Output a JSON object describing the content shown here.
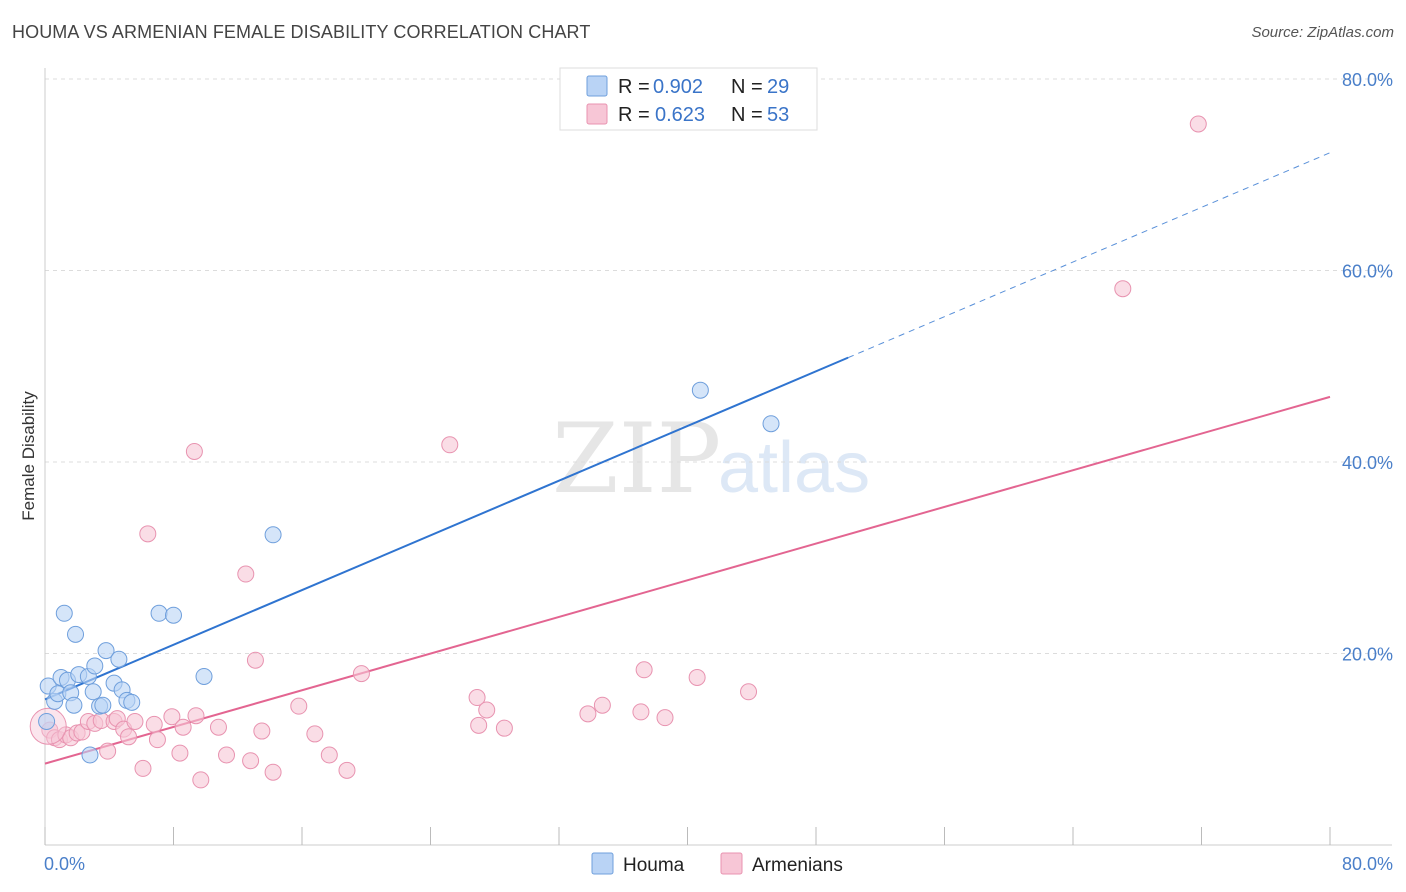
{
  "title": "HOUMA VS ARMENIAN FEMALE DISABILITY CORRELATION CHART",
  "source": "Source: ZipAtlas.com",
  "watermark": {
    "zip": "ZIP",
    "atlas": "atlas"
  },
  "colors": {
    "houma_fill": "#b9d3f5",
    "houma_stroke": "#6f9fdc",
    "houma_line": "#2f74d0",
    "arm_fill": "#f7c6d6",
    "arm_stroke": "#e893b0",
    "arm_line": "#e36591",
    "tick": "#4a7fc9",
    "grid": "#dcdcdc"
  },
  "legend": {
    "rows": [
      {
        "r_label": "R = ",
        "r_value": "0.902",
        "n_label": "N = ",
        "n_value": "29"
      },
      {
        "r_label": "R = ",
        "r_value": "0.623",
        "n_label": "N = ",
        "n_value": "53"
      }
    ]
  },
  "bottom_legend": [
    "Houma",
    "Armenians"
  ],
  "chart_data": {
    "type": "scatter",
    "title": "HOUMA VS ARMENIAN FEMALE DISABILITY CORRELATION CHART",
    "xlabel": "",
    "ylabel": "Female Disability",
    "xlim": [
      0,
      80
    ],
    "ylim": [
      0,
      80
    ],
    "x_tick_labels": [
      "0.0%",
      "80.0%"
    ],
    "y_tick_labels": [
      "20.0%",
      "40.0%",
      "60.0%",
      "80.0%"
    ],
    "y_ticks": [
      20,
      40,
      60,
      80
    ],
    "series": [
      {
        "name": "Houma",
        "r": 0.902,
        "n": 29,
        "trend": {
          "x0": 0,
          "y0": 15.2,
          "x1": 50,
          "y1": 50.9,
          "dashed_to_x": 80,
          "dashed_to_y": 72.3
        },
        "points": [
          [
            0.1,
            12.9
          ],
          [
            0.2,
            16.6
          ],
          [
            0.6,
            15.0
          ],
          [
            0.8,
            15.8
          ],
          [
            1.0,
            17.5
          ],
          [
            1.2,
            24.2
          ],
          [
            1.4,
            17.2
          ],
          [
            1.6,
            15.9
          ],
          [
            1.8,
            14.6
          ],
          [
            1.9,
            22.0
          ],
          [
            2.1,
            17.8
          ],
          [
            2.7,
            17.6
          ],
          [
            2.8,
            9.4
          ],
          [
            3.0,
            16.0
          ],
          [
            3.1,
            18.7
          ],
          [
            3.4,
            14.5
          ],
          [
            3.6,
            14.6
          ],
          [
            3.8,
            20.3
          ],
          [
            4.3,
            16.9
          ],
          [
            4.6,
            19.4
          ],
          [
            4.8,
            16.2
          ],
          [
            5.1,
            15.1
          ],
          [
            5.4,
            14.9
          ],
          [
            7.1,
            24.2
          ],
          [
            8.0,
            24.0
          ],
          [
            9.9,
            17.6
          ],
          [
            14.2,
            32.4
          ],
          [
            40.8,
            47.5
          ],
          [
            45.2,
            44.0
          ]
        ]
      },
      {
        "name": "Armenians",
        "r": 0.623,
        "n": 53,
        "trend": {
          "x0": 0,
          "y0": 8.5,
          "x1": 80,
          "y1": 46.8
        },
        "points": [
          [
            0.3,
            12.0
          ],
          [
            0.6,
            11.2
          ],
          [
            0.9,
            11.0
          ],
          [
            1.3,
            11.5
          ],
          [
            1.6,
            11.2
          ],
          [
            2.0,
            11.7
          ],
          [
            2.3,
            11.8
          ],
          [
            2.7,
            12.9
          ],
          [
            3.1,
            12.7
          ],
          [
            3.5,
            13.0
          ],
          [
            3.9,
            9.8
          ],
          [
            4.3,
            12.9
          ],
          [
            4.5,
            13.2
          ],
          [
            4.9,
            12.1
          ],
          [
            5.2,
            11.3
          ],
          [
            5.6,
            12.9
          ],
          [
            6.1,
            8.0
          ],
          [
            6.4,
            32.5
          ],
          [
            6.8,
            12.6
          ],
          [
            7.0,
            11.0
          ],
          [
            7.9,
            13.4
          ],
          [
            8.4,
            9.6
          ],
          [
            8.6,
            12.3
          ],
          [
            9.4,
            13.5
          ],
          [
            9.7,
            6.8
          ],
          [
            9.3,
            41.1
          ],
          [
            10.8,
            12.3
          ],
          [
            11.3,
            9.4
          ],
          [
            12.5,
            28.3
          ],
          [
            12.8,
            8.8
          ],
          [
            13.1,
            19.3
          ],
          [
            13.5,
            11.9
          ],
          [
            14.2,
            7.6
          ],
          [
            15.8,
            14.5
          ],
          [
            16.8,
            11.6
          ],
          [
            17.7,
            9.4
          ],
          [
            18.8,
            7.8
          ],
          [
            19.7,
            17.9
          ],
          [
            25.2,
            41.8
          ],
          [
            26.9,
            15.4
          ],
          [
            27.0,
            12.5
          ],
          [
            27.5,
            14.1
          ],
          [
            28.6,
            12.2
          ],
          [
            33.8,
            13.7
          ],
          [
            34.7,
            14.6
          ],
          [
            37.1,
            13.9
          ],
          [
            37.3,
            18.3
          ],
          [
            38.6,
            13.3
          ],
          [
            40.6,
            17.5
          ],
          [
            43.8,
            16.0
          ],
          [
            67.1,
            58.1
          ],
          [
            71.8,
            75.3
          ],
          [
            0.2,
            12.4
          ]
        ]
      }
    ]
  }
}
